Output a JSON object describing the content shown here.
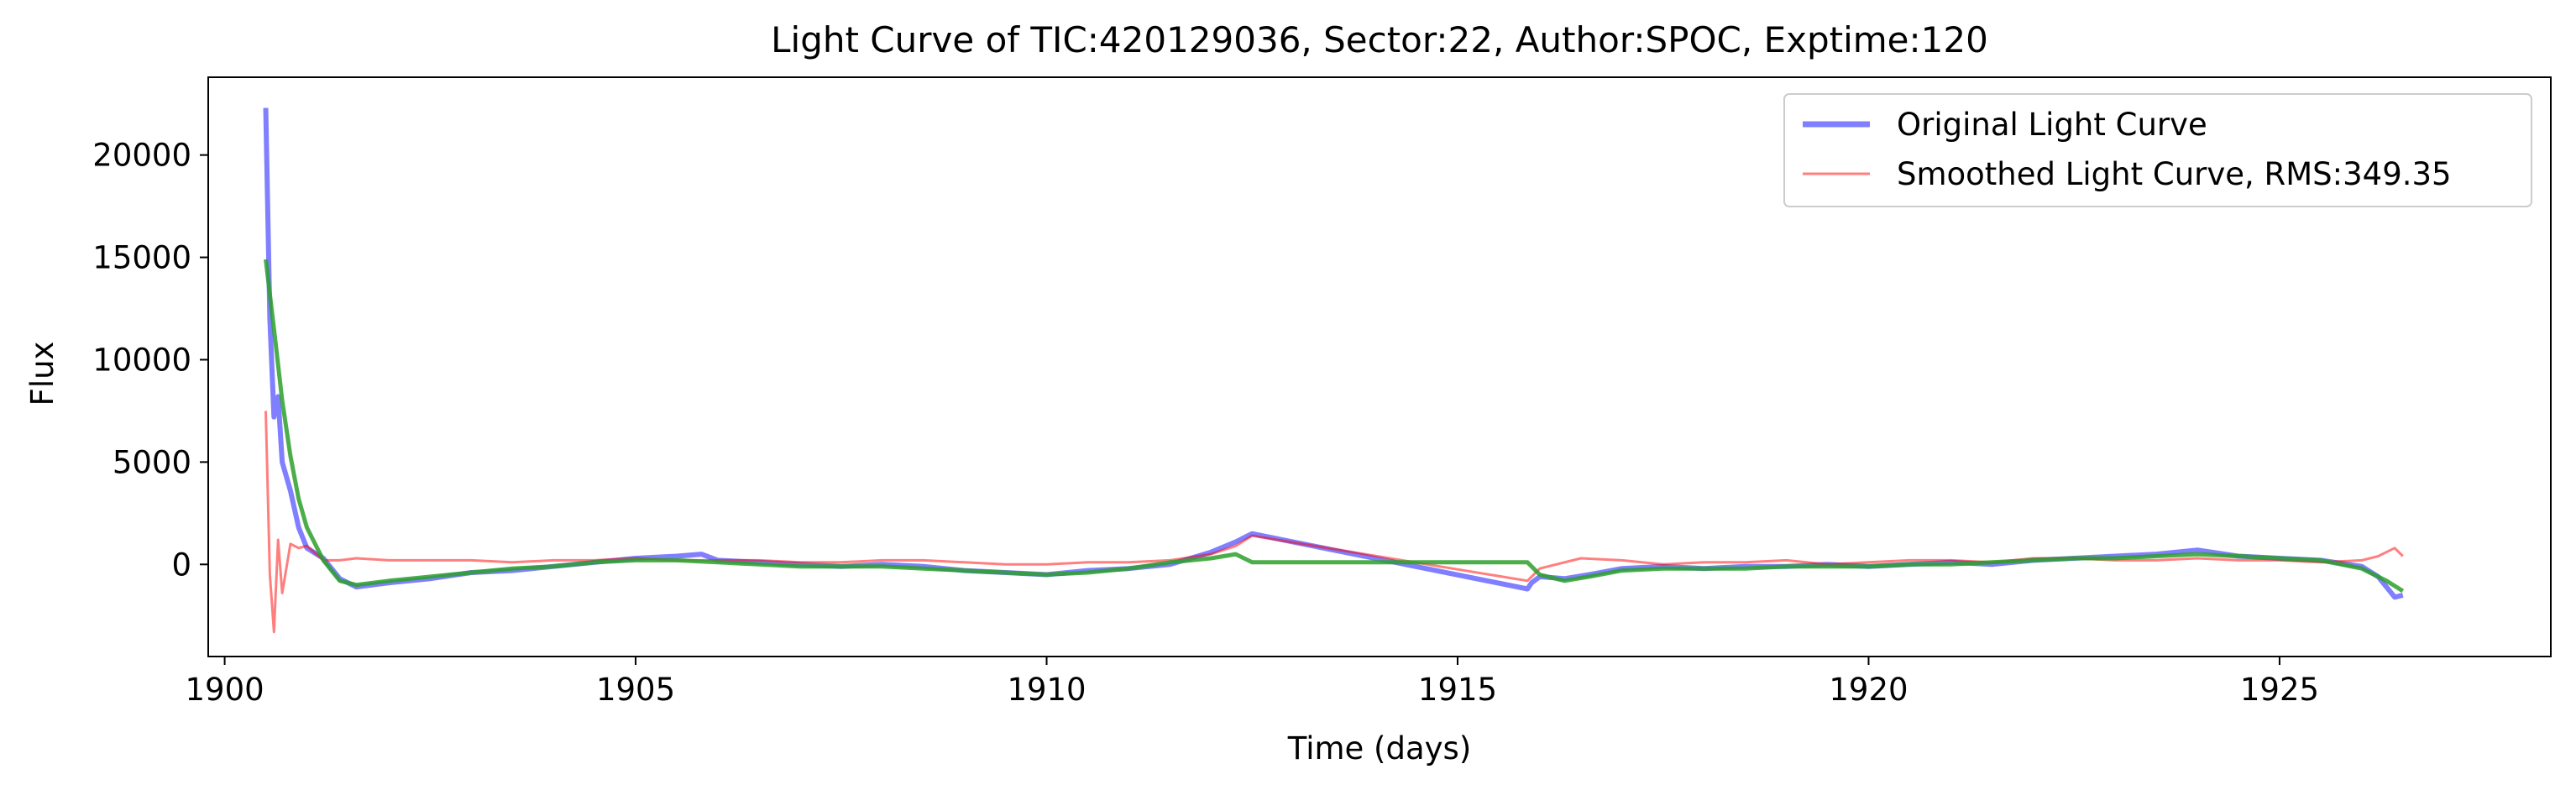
{
  "chart_data": {
    "type": "line",
    "title": "Light Curve of TIC:420129036, Sector:22, Author:SPOC, Exptime:120",
    "xlabel": "Time (days)",
    "ylabel": "Flux",
    "xlim": [
      1899.8,
      1928.3
    ],
    "ylim": [
      -4500,
      23800
    ],
    "xticks": [
      1900,
      1905,
      1910,
      1915,
      1920,
      1925
    ],
    "xtick_labels": [
      "1900",
      "1905",
      "1910",
      "1915",
      "1920",
      "1925"
    ],
    "yticks": [
      0,
      5000,
      10000,
      15000,
      20000
    ],
    "ytick_labels": [
      "0",
      "5000",
      "10000",
      "15000",
      "20000"
    ],
    "grid": false,
    "legend_position": "upper right",
    "legend": [
      {
        "label": "Original Light Curve",
        "color": "#0000ff",
        "alpha": 0.5,
        "linewidth": "thick"
      },
      {
        "label": "Smoothed Light Curve, RMS:349.35",
        "color": "#ff0000",
        "alpha": 0.5,
        "linewidth": "thin"
      }
    ],
    "colors": {
      "original": "#0000ff",
      "smoothed": "#ff0000",
      "trend": "#2ca02c"
    },
    "series": [
      {
        "name": "Original Light Curve",
        "color": "#0000ff",
        "x": [
          1900.5,
          1900.55,
          1900.6,
          1900.65,
          1900.7,
          1900.8,
          1900.9,
          1901.0,
          1901.2,
          1901.4,
          1901.6,
          1902.0,
          1902.5,
          1903.0,
          1903.5,
          1904.0,
          1904.5,
          1905.0,
          1905.5,
          1905.8,
          1906.0,
          1906.5,
          1907.0,
          1907.5,
          1908.0,
          1908.5,
          1909.0,
          1909.5,
          1910.0,
          1910.5,
          1911.0,
          1911.5,
          1912.0,
          1912.3,
          1912.45,
          1912.5,
          1915.85,
          1915.9,
          1916.0,
          1916.3,
          1916.6,
          1917.0,
          1917.5,
          1918.0,
          1918.5,
          1919.0,
          1919.5,
          1920.0,
          1920.5,
          1921.0,
          1921.5,
          1922.0,
          1922.5,
          1923.0,
          1923.5,
          1924.0,
          1924.5,
          1925.0,
          1925.5,
          1926.0,
          1926.2,
          1926.4,
          1926.5
        ],
        "y": [
          22300,
          12000,
          7200,
          8200,
          5000,
          3600,
          1800,
          800,
          300,
          -700,
          -1100,
          -900,
          -700,
          -400,
          -300,
          -100,
          100,
          300,
          400,
          500,
          200,
          100,
          0,
          -100,
          0,
          -100,
          -300,
          -400,
          -500,
          -300,
          -200,
          0,
          600,
          1100,
          1400,
          1500,
          -1200,
          -900,
          -600,
          -700,
          -500,
          -200,
          -100,
          -200,
          -100,
          -100,
          0,
          -100,
          0,
          100,
          0,
          200,
          300,
          400,
          500,
          700,
          400,
          300,
          200,
          -100,
          -600,
          -1600,
          -1500
        ]
      },
      {
        "name": "Smoothed Light Curve, RMS:349.35",
        "color": "#ff0000",
        "x": [
          1900.5,
          1900.55,
          1900.6,
          1900.65,
          1900.7,
          1900.8,
          1900.9,
          1901.0,
          1901.2,
          1901.4,
          1901.6,
          1902.0,
          1902.5,
          1903.0,
          1903.5,
          1904.0,
          1904.5,
          1905.0,
          1905.5,
          1906.0,
          1906.5,
          1907.0,
          1907.5,
          1908.0,
          1908.5,
          1909.0,
          1909.5,
          1910.0,
          1910.5,
          1911.0,
          1911.5,
          1912.0,
          1912.3,
          1912.5,
          1915.85,
          1916.0,
          1916.5,
          1917.0,
          1917.5,
          1918.0,
          1918.5,
          1919.0,
          1919.5,
          1920.0,
          1920.5,
          1921.0,
          1921.5,
          1922.0,
          1922.5,
          1923.0,
          1923.5,
          1924.0,
          1924.5,
          1925.0,
          1925.5,
          1926.0,
          1926.2,
          1926.4,
          1926.5
        ],
        "y": [
          7500,
          -500,
          -3300,
          1200,
          -1400,
          1000,
          800,
          900,
          200,
          200,
          300,
          200,
          200,
          200,
          100,
          200,
          200,
          300,
          200,
          200,
          200,
          100,
          100,
          200,
          200,
          100,
          0,
          0,
          100,
          100,
          200,
          500,
          900,
          1400,
          -800,
          -200,
          300,
          200,
          0,
          100,
          100,
          200,
          0,
          100,
          200,
          200,
          100,
          300,
          300,
          200,
          200,
          300,
          200,
          200,
          100,
          200,
          400,
          800,
          400
        ]
      },
      {
        "name": "",
        "color": "#2ca02c",
        "x": [
          1900.5,
          1900.6,
          1900.7,
          1900.8,
          1900.9,
          1901.0,
          1901.2,
          1901.4,
          1901.6,
          1902.0,
          1902.5,
          1903.0,
          1903.5,
          1904.0,
          1904.5,
          1905.0,
          1905.5,
          1906.0,
          1906.5,
          1907.0,
          1907.5,
          1908.0,
          1908.5,
          1909.0,
          1909.5,
          1910.0,
          1910.5,
          1911.0,
          1911.5,
          1912.0,
          1912.3,
          1912.5,
          1915.85,
          1916.0,
          1916.3,
          1916.6,
          1917.0,
          1917.5,
          1918.0,
          1918.5,
          1919.0,
          1919.5,
          1920.0,
          1920.5,
          1921.0,
          1921.5,
          1922.0,
          1922.5,
          1923.0,
          1923.5,
          1924.0,
          1924.5,
          1925.0,
          1925.5,
          1926.0,
          1926.3,
          1926.5
        ],
        "y": [
          14900,
          11500,
          8000,
          5300,
          3200,
          1800,
          200,
          -800,
          -1000,
          -800,
          -600,
          -400,
          -200,
          -100,
          100,
          200,
          200,
          100,
          0,
          -100,
          -100,
          -100,
          -200,
          -300,
          -400,
          -500,
          -400,
          -200,
          100,
          300,
          500,
          100,
          100,
          -500,
          -800,
          -600,
          -300,
          -200,
          -200,
          -200,
          -100,
          -100,
          -100,
          0,
          0,
          100,
          200,
          300,
          300,
          400,
          500,
          400,
          300,
          200,
          -200,
          -800,
          -1300
        ]
      }
    ]
  }
}
